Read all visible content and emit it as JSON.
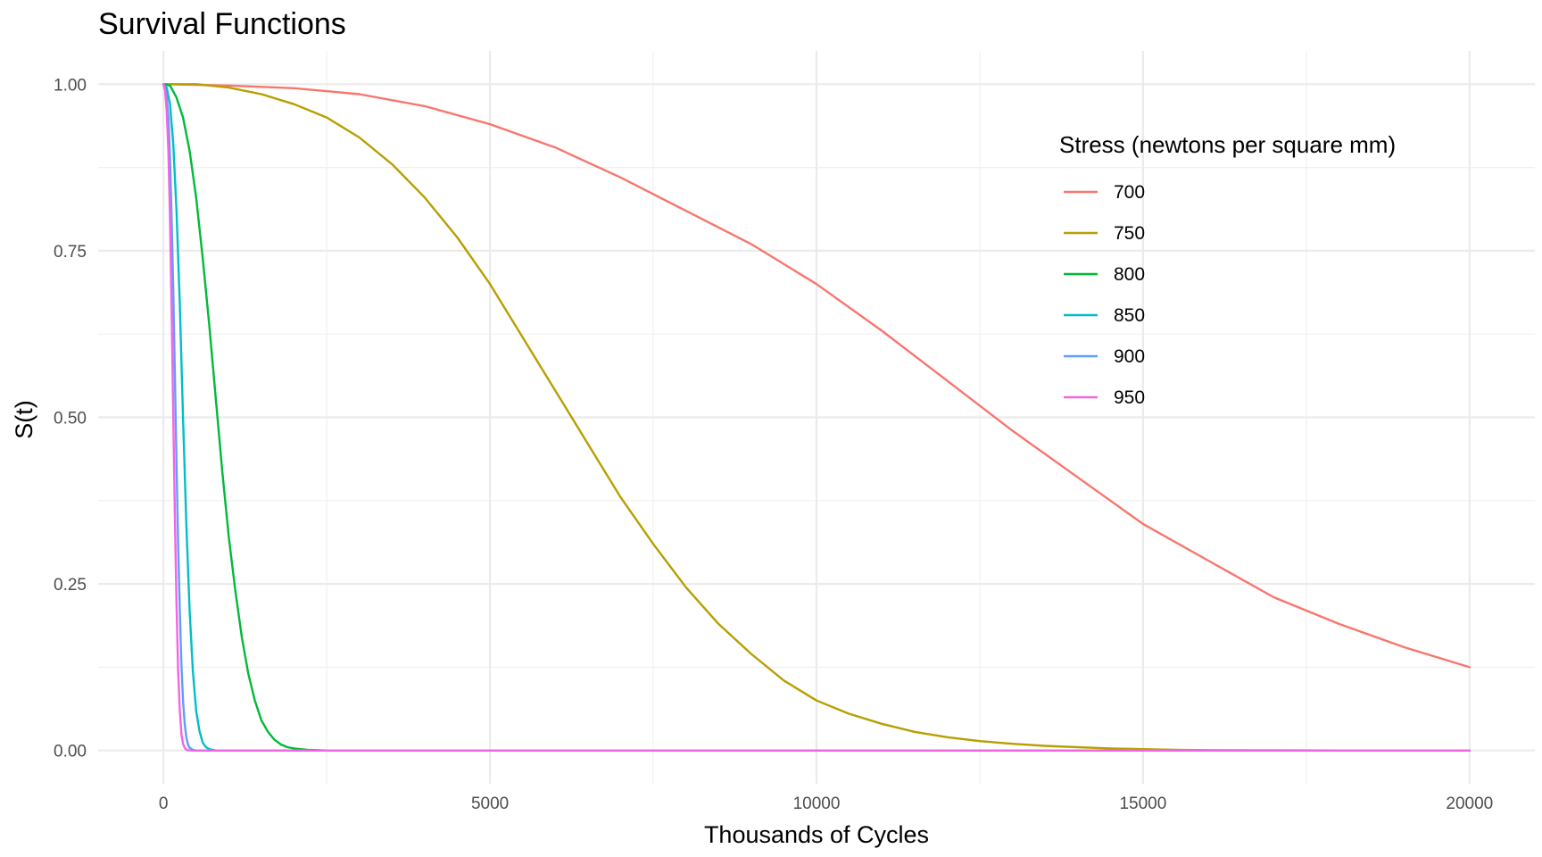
{
  "chart_data": {
    "type": "line",
    "title": "Survival Functions",
    "xlabel": "Thousands of Cycles",
    "ylabel": "S(t)",
    "xlim": [
      -1000,
      21000
    ],
    "ylim": [
      -0.05,
      1.05
    ],
    "x_ticks": [
      0,
      5000,
      10000,
      15000,
      20000
    ],
    "x_tick_labels": [
      "0",
      "5000",
      "10000",
      "15000",
      "20000"
    ],
    "y_ticks": [
      0,
      0.25,
      0.5,
      0.75,
      1
    ],
    "y_tick_labels": [
      "0.00",
      "0.25",
      "0.50",
      "0.75",
      "1.00"
    ],
    "x_minor_ticks": [
      2500,
      7500,
      12500,
      17500
    ],
    "y_minor_ticks": [
      0.125,
      0.375,
      0.625,
      0.875
    ],
    "grid": true,
    "legend": {
      "title": "Stress (newtons per square mm)",
      "position": "top-right"
    },
    "series": [
      {
        "name": "700",
        "color": "#F8766D",
        "x": [
          0,
          1000,
          2000,
          3000,
          4000,
          5000,
          6000,
          7000,
          8000,
          9000,
          10000,
          11000,
          12000,
          13000,
          14000,
          15000,
          16000,
          17000,
          18000,
          19000,
          20000
        ],
        "values": [
          1,
          0.998,
          0.994,
          0.985,
          0.967,
          0.94,
          0.905,
          0.86,
          0.81,
          0.76,
          0.7,
          0.63,
          0.555,
          0.48,
          0.41,
          0.34,
          0.285,
          0.23,
          0.19,
          0.155,
          0.125
        ]
      },
      {
        "name": "750",
        "color": "#B79F00",
        "x": [
          0,
          500,
          1000,
          1500,
          2000,
          2500,
          3000,
          3500,
          4000,
          4500,
          5000,
          5500,
          6000,
          6500,
          7000,
          7500,
          8000,
          8500,
          9000,
          9500,
          10000,
          10500,
          11000,
          11500,
          12000,
          12500,
          13000,
          13500,
          14000,
          14500,
          15000,
          15500,
          16000,
          17000,
          18000,
          19000,
          20000
        ],
        "values": [
          1,
          1,
          0.995,
          0.985,
          0.97,
          0.95,
          0.92,
          0.88,
          0.83,
          0.77,
          0.7,
          0.62,
          0.54,
          0.46,
          0.38,
          0.31,
          0.245,
          0.19,
          0.145,
          0.105,
          0.075,
          0.055,
          0.04,
          0.028,
          0.02,
          0.014,
          0.01,
          0.007,
          0.005,
          0.003,
          0.002,
          0.001,
          0.0005,
          0.0002,
          0,
          0,
          0
        ]
      },
      {
        "name": "800",
        "color": "#00BA38",
        "x": [
          0,
          100,
          200,
          300,
          400,
          500,
          600,
          700,
          800,
          900,
          1000,
          1100,
          1200,
          1300,
          1400,
          1500,
          1600,
          1700,
          1800,
          1900,
          2000,
          2200,
          2500,
          3000,
          5000,
          10000,
          15000,
          20000
        ],
        "values": [
          1,
          0.998,
          0.98,
          0.95,
          0.9,
          0.83,
          0.74,
          0.64,
          0.53,
          0.42,
          0.32,
          0.24,
          0.17,
          0.115,
          0.075,
          0.045,
          0.028,
          0.016,
          0.009,
          0.005,
          0.003,
          0.001,
          0,
          0,
          0,
          0,
          0,
          0
        ]
      },
      {
        "name": "850",
        "color": "#00BFC4",
        "x": [
          0,
          50,
          100,
          150,
          200,
          250,
          300,
          350,
          400,
          450,
          500,
          550,
          600,
          650,
          700,
          800,
          1000,
          5000,
          10000,
          15000,
          20000
        ],
        "values": [
          1,
          0.995,
          0.97,
          0.91,
          0.81,
          0.67,
          0.5,
          0.34,
          0.21,
          0.12,
          0.06,
          0.03,
          0.012,
          0.005,
          0.002,
          0,
          0,
          0,
          0,
          0,
          0
        ]
      },
      {
        "name": "900",
        "color": "#619CFF",
        "x": [
          0,
          25,
          50,
          75,
          100,
          125,
          150,
          175,
          200,
          225,
          250,
          275,
          300,
          325,
          350,
          375,
          400,
          450,
          500,
          1000,
          5000,
          10000,
          15000,
          20000
        ],
        "values": [
          1,
          0.995,
          0.98,
          0.95,
          0.89,
          0.8,
          0.69,
          0.56,
          0.43,
          0.31,
          0.21,
          0.13,
          0.075,
          0.04,
          0.02,
          0.009,
          0.004,
          0.001,
          0,
          0,
          0,
          0,
          0,
          0
        ]
      },
      {
        "name": "950",
        "color": "#F564E3",
        "x": [
          0,
          25,
          50,
          75,
          100,
          125,
          150,
          175,
          200,
          225,
          250,
          275,
          300,
          325,
          350,
          400,
          500,
          1000,
          5000,
          10000,
          15000,
          20000
        ],
        "values": [
          1,
          0.99,
          0.96,
          0.9,
          0.8,
          0.66,
          0.5,
          0.35,
          0.22,
          0.12,
          0.06,
          0.025,
          0.01,
          0.004,
          0.001,
          0,
          0,
          0,
          0,
          0,
          0,
          0
        ]
      }
    ]
  }
}
